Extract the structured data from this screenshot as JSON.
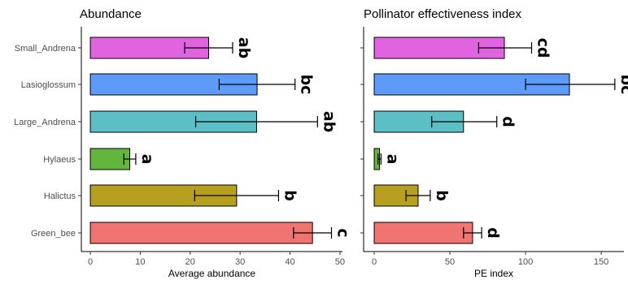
{
  "chart_data": [
    {
      "type": "bar",
      "orientation": "horizontal",
      "title": "Abundance",
      "xlabel": "Average abundance",
      "ylabel": "",
      "xlim": [
        -1.8,
        50.5
      ],
      "xticks": [
        0,
        10,
        20,
        30,
        40,
        50
      ],
      "categories": [
        "Green_bee",
        "Halictus",
        "Hylaeus",
        "Large_Andrena",
        "Lasioglossum",
        "Small_Andrena"
      ],
      "values": [
        44.5,
        29.3,
        7.9,
        33.3,
        33.4,
        23.7
      ],
      "error_low": [
        40.7,
        20.9,
        6.7,
        21.1,
        25.8,
        18.9
      ],
      "error_high": [
        48.3,
        37.7,
        9.1,
        45.5,
        41.0,
        28.5
      ],
      "significance": [
        "c",
        "b",
        "a",
        "ab",
        "bc",
        "ab"
      ],
      "colors": [
        "#F07470",
        "#B79F1F",
        "#62B63E",
        "#5BBFC5",
        "#5E9BF8",
        "#E064E0"
      ],
      "grid": false,
      "legend": "none"
    },
    {
      "type": "bar",
      "orientation": "horizontal",
      "title": "Pollinator effectiveness index",
      "xlabel": "PE index",
      "ylabel": "",
      "xlim": [
        -7,
        165
      ],
      "xticks": [
        0,
        50,
        100,
        150
      ],
      "categories": [
        "Green_bee",
        "Halictus",
        "Hylaeus",
        "Large_Andrena",
        "Lasioglossum",
        "Small_Andrena"
      ],
      "values": [
        65,
        29,
        3.5,
        59,
        129,
        86
      ],
      "error_low": [
        59,
        21,
        2.5,
        38,
        100,
        69
      ],
      "error_high": [
        71,
        37,
        4.5,
        81,
        159,
        104
      ],
      "significance": [
        "d",
        "b",
        "a",
        "d",
        "bc",
        "cd"
      ],
      "colors": [
        "#F07470",
        "#B79F1F",
        "#62B63E",
        "#5BBFC5",
        "#5E9BF8",
        "#E064E0"
      ],
      "grid": false,
      "legend": "none"
    }
  ]
}
